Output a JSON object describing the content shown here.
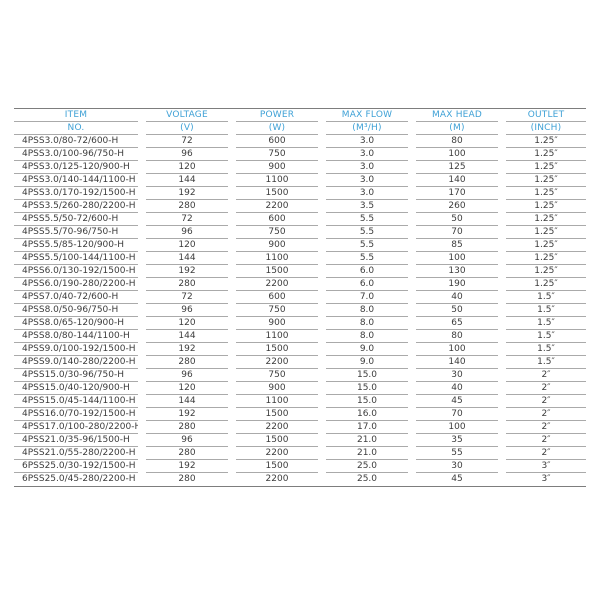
{
  "colors": {
    "header_text": "#3fa1d6",
    "data_text": "#3c3c3c",
    "row_line": "#aaaaaa",
    "outer_line": "#7d7d7d",
    "background": "#ffffff"
  },
  "table": {
    "columns": [
      {
        "title": "ITEM",
        "unit": "NO."
      },
      {
        "title": "VOLTAGE",
        "unit": "(V)"
      },
      {
        "title": "POWER",
        "unit": "(W)"
      },
      {
        "title": "MAX FLOW",
        "unit": "(M³/H)"
      },
      {
        "title": "MAX HEAD",
        "unit": "(M)"
      },
      {
        "title": "OUTLET",
        "unit": "(INCH)"
      }
    ],
    "rows": [
      [
        "4PSS3.0/80-72/600-H",
        "72",
        "600",
        "3.0",
        "80",
        "1.25″"
      ],
      [
        "4PSS3.0/100-96/750-H",
        "96",
        "750",
        "3.0",
        "100",
        "1.25″"
      ],
      [
        "4PSS3.0/125-120/900-H",
        "120",
        "900",
        "3.0",
        "125",
        "1.25″"
      ],
      [
        "4PSS3.0/140-144/1100-H",
        "144",
        "1100",
        "3.0",
        "140",
        "1.25″"
      ],
      [
        "4PSS3.0/170-192/1500-H",
        "192",
        "1500",
        "3.0",
        "170",
        "1.25″"
      ],
      [
        "4PSS3.5/260-280/2200-H",
        "280",
        "2200",
        "3.5",
        "260",
        "1.25″"
      ],
      [
        "4PSS5.5/50-72/600-H",
        "72",
        "600",
        "5.5",
        "50",
        "1.25″"
      ],
      [
        "4PSS5.5/70-96/750-H",
        "96",
        "750",
        "5.5",
        "70",
        "1.25″"
      ],
      [
        "4PSS5.5/85-120/900-H",
        "120",
        "900",
        "5.5",
        "85",
        "1.25″"
      ],
      [
        "4PSS5.5/100-144/1100-H",
        "144",
        "1100",
        "5.5",
        "100",
        "1.25″"
      ],
      [
        "4PSS6.0/130-192/1500-H",
        "192",
        "1500",
        "6.0",
        "130",
        "1.25″"
      ],
      [
        "4PSS6.0/190-280/2200-H",
        "280",
        "2200",
        "6.0",
        "190",
        "1.25″"
      ],
      [
        "4PSS7.0/40-72/600-H",
        "72",
        "600",
        "7.0",
        "40",
        "1.5″"
      ],
      [
        "4PSS8.0/50-96/750-H",
        "96",
        "750",
        "8.0",
        "50",
        "1.5″"
      ],
      [
        "4PSS8.0/65-120/900-H",
        "120",
        "900",
        "8.0",
        "65",
        "1.5″"
      ],
      [
        "4PSS8.0/80-144/1100-H",
        "144",
        "1100",
        "8.0",
        "80",
        "1.5″"
      ],
      [
        "4PSS9.0/100-192/1500-H",
        "192",
        "1500",
        "9.0",
        "100",
        "1.5″"
      ],
      [
        "4PSS9.0/140-280/2200-H",
        "280",
        "2200",
        "9.0",
        "140",
        "1.5″"
      ],
      [
        "4PSS15.0/30-96/750-H",
        "96",
        "750",
        "15.0",
        "30",
        "2″"
      ],
      [
        "4PSS15.0/40-120/900-H",
        "120",
        "900",
        "15.0",
        "40",
        "2″"
      ],
      [
        "4PSS15.0/45-144/1100-H",
        "144",
        "1100",
        "15.0",
        "45",
        "2″"
      ],
      [
        "4PSS16.0/70-192/1500-H",
        "192",
        "1500",
        "16.0",
        "70",
        "2″"
      ],
      [
        "4PSS17.0/100-280/2200-H",
        "280",
        "2200",
        "17.0",
        "100",
        "2″"
      ],
      [
        "4PSS21.0/35-96/1500-H",
        "96",
        "1500",
        "21.0",
        "35",
        "2″"
      ],
      [
        "4PSS21.0/55-280/2200-H",
        "280",
        "2200",
        "21.0",
        "55",
        "2″"
      ],
      [
        "6PSS25.0/30-192/1500-H",
        "192",
        "1500",
        "25.0",
        "30",
        "3″"
      ],
      [
        "6PSS25.0/45-280/2200-H",
        "280",
        "2200",
        "25.0",
        "45",
        "3″"
      ]
    ]
  }
}
